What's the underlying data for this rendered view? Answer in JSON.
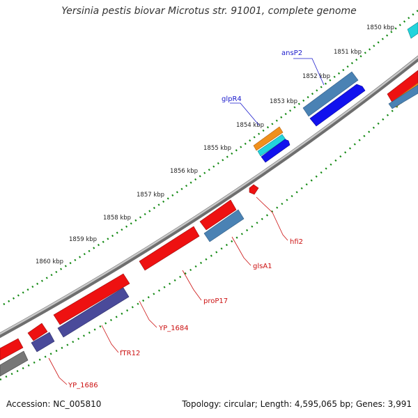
{
  "title": "Yersinia pestis biovar Microtus str. 91001, complete genome",
  "footer": {
    "accession": "Accession: NC_005810",
    "summary": "Topology: circular; Length: 4,595,065 bp; Genes: 3,991"
  },
  "ticks": [
    {
      "label": "1850 kbp"
    },
    {
      "label": "1851 kbp"
    },
    {
      "label": "1852 kbp"
    },
    {
      "label": "1853 kbp"
    },
    {
      "label": "1854 kbp"
    },
    {
      "label": "1855 kbp"
    },
    {
      "label": "1856 kbp"
    },
    {
      "label": "1857 kbp"
    },
    {
      "label": "1858 kbp"
    },
    {
      "label": "1859 kbp"
    },
    {
      "label": "1860 kbp"
    }
  ],
  "genes": {
    "forward": [
      {
        "name": "ansP2",
        "color": "#4a82b4"
      },
      {
        "name": "glpR4",
        "color": "#f0901c"
      }
    ],
    "reverse": [
      {
        "name": "hfi2",
        "color": "#ee1111"
      },
      {
        "name": "glsA1",
        "color": "#ee1111"
      },
      {
        "name": "proP17",
        "color": "#ee1111"
      },
      {
        "name": "YP_1684",
        "color": "#ee1111"
      },
      {
        "name": "fTR12",
        "color": "#ee1111"
      },
      {
        "name": "YP_1686",
        "color": "#ee1111"
      }
    ]
  },
  "colors": {
    "forward_label": "#1a1acc",
    "reverse_label": "#cc1111",
    "tick": "#118811",
    "backbone": "#8a8a8a",
    "cds_red": "#ee1111",
    "cds_blue": "#1111ee",
    "cds_steel": "#4a82b4",
    "cds_slate": "#4a4a9a",
    "cds_cyan": "#22d4dc",
    "cds_orange": "#f0901c",
    "cds_gray": "#777777"
  }
}
